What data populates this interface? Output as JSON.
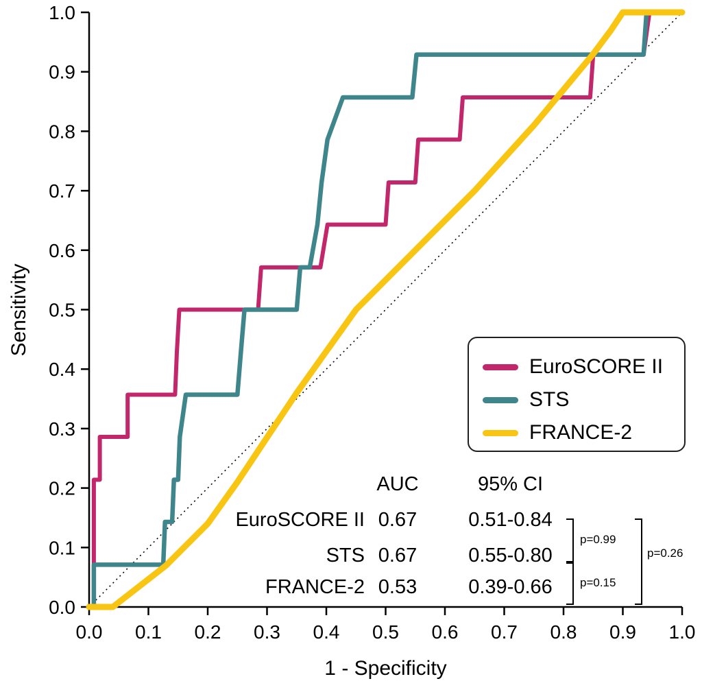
{
  "figure": {
    "x_axis_label": "1 - Specificity",
    "y_axis_label": "Sensitivity"
  },
  "legend": {
    "items": [
      {
        "label": "EuroSCORE II"
      },
      {
        "label": "STS"
      },
      {
        "label": "FRANCE-2"
      }
    ]
  },
  "stats": {
    "header": {
      "auc": "AUC",
      "ci": "95% CI"
    },
    "rows": [
      {
        "label": "EuroSCORE II",
        "auc": "0.67",
        "ci": "0.51-0.84"
      },
      {
        "label": "STS",
        "auc": "0.67",
        "ci": "0.55-0.80"
      },
      {
        "label": "FRANCE-2",
        "auc": "0.53",
        "ci": "0.39-0.66"
      }
    ],
    "comparisons": [
      {
        "pair": "EuroSCORE II vs STS",
        "label": "p=0.99"
      },
      {
        "pair": "STS vs FRANCE-2",
        "label": "p=0.15"
      },
      {
        "pair": "EuroSCORE II vs FRANCE-2",
        "label": "p=0.26"
      }
    ]
  },
  "chart_data": {
    "type": "line",
    "subtype": "roc-curve",
    "title": "",
    "xlabel": "1 - Specificity",
    "ylabel": "Sensitivity",
    "xlim": [
      0,
      1
    ],
    "ylim": [
      0,
      1
    ],
    "grid": false,
    "legend_position": "inside-right",
    "x_ticks": [
      "0.0",
      "0.1",
      "0.2",
      "0.3",
      "0.4",
      "0.5",
      "0.6",
      "0.7",
      "0.8",
      "0.9",
      "1.0"
    ],
    "y_ticks": [
      "0.0",
      "0.1",
      "0.2",
      "0.3",
      "0.4",
      "0.5",
      "0.6",
      "0.7",
      "0.8",
      "0.9",
      "1.0"
    ],
    "reference_line": {
      "from": [
        0,
        0
      ],
      "to": [
        1,
        1
      ],
      "style": "dotted",
      "color": "#000000"
    },
    "series": [
      {
        "name": "EuroSCORE II",
        "color": "#c2266b",
        "stroke_width": 6,
        "auc": 0.67,
        "ci_95": "0.51-0.84",
        "points": [
          [
            0,
            0
          ],
          [
            0.008,
            0
          ],
          [
            0.008,
            0.214
          ],
          [
            0.018,
            0.214
          ],
          [
            0.018,
            0.286
          ],
          [
            0.065,
            0.286
          ],
          [
            0.065,
            0.357
          ],
          [
            0.145,
            0.357
          ],
          [
            0.148,
            0.429
          ],
          [
            0.152,
            0.5
          ],
          [
            0.285,
            0.5
          ],
          [
            0.29,
            0.571
          ],
          [
            0.39,
            0.571
          ],
          [
            0.402,
            0.643
          ],
          [
            0.5,
            0.643
          ],
          [
            0.505,
            0.714
          ],
          [
            0.55,
            0.714
          ],
          [
            0.555,
            0.786
          ],
          [
            0.625,
            0.786
          ],
          [
            0.63,
            0.857
          ],
          [
            0.845,
            0.857
          ],
          [
            0.85,
            0.929
          ],
          [
            0.935,
            0.929
          ],
          [
            0.945,
            1.0
          ],
          [
            1.0,
            1.0
          ]
        ]
      },
      {
        "name": "STS",
        "color": "#3e858c",
        "stroke_width": 6.5,
        "auc": 0.67,
        "ci_95": "0.55-0.80",
        "points": [
          [
            0,
            0
          ],
          [
            0.008,
            0
          ],
          [
            0.008,
            0.071
          ],
          [
            0.125,
            0.071
          ],
          [
            0.128,
            0.143
          ],
          [
            0.14,
            0.143
          ],
          [
            0.143,
            0.214
          ],
          [
            0.15,
            0.214
          ],
          [
            0.153,
            0.286
          ],
          [
            0.163,
            0.357
          ],
          [
            0.25,
            0.357
          ],
          [
            0.256,
            0.429
          ],
          [
            0.262,
            0.5
          ],
          [
            0.35,
            0.5
          ],
          [
            0.356,
            0.571
          ],
          [
            0.372,
            0.571
          ],
          [
            0.385,
            0.643
          ],
          [
            0.392,
            0.714
          ],
          [
            0.402,
            0.786
          ],
          [
            0.428,
            0.857
          ],
          [
            0.545,
            0.857
          ],
          [
            0.552,
            0.929
          ],
          [
            0.935,
            0.929
          ],
          [
            0.94,
            1.0
          ],
          [
            1.0,
            1.0
          ]
        ]
      },
      {
        "name": "FRANCE-2",
        "color": "#f9c513",
        "stroke_width": 9,
        "auc": 0.53,
        "ci_95": "0.39-0.66",
        "points": [
          [
            0,
            0
          ],
          [
            0.04,
            0
          ],
          [
            0.13,
            0.07
          ],
          [
            0.2,
            0.14
          ],
          [
            0.25,
            0.21
          ],
          [
            0.3,
            0.285
          ],
          [
            0.35,
            0.36
          ],
          [
            0.4,
            0.43
          ],
          [
            0.45,
            0.5
          ],
          [
            0.55,
            0.6
          ],
          [
            0.65,
            0.7
          ],
          [
            0.75,
            0.81
          ],
          [
            0.85,
            0.93
          ],
          [
            0.88,
            0.97
          ],
          [
            0.9,
            1.0
          ],
          [
            1.0,
            1.0
          ]
        ]
      }
    ],
    "pairwise_p_values": [
      {
        "pair": "EuroSCORE II vs STS",
        "p": "p=0.99",
        "rows": [
          0,
          1
        ]
      },
      {
        "pair": "STS vs FRANCE-2",
        "p": "p=0.15",
        "rows": [
          1,
          2
        ]
      },
      {
        "pair": "EuroSCORE II vs FRANCE-2",
        "p": "p=0.26",
        "rows": [
          0,
          2
        ]
      }
    ]
  }
}
